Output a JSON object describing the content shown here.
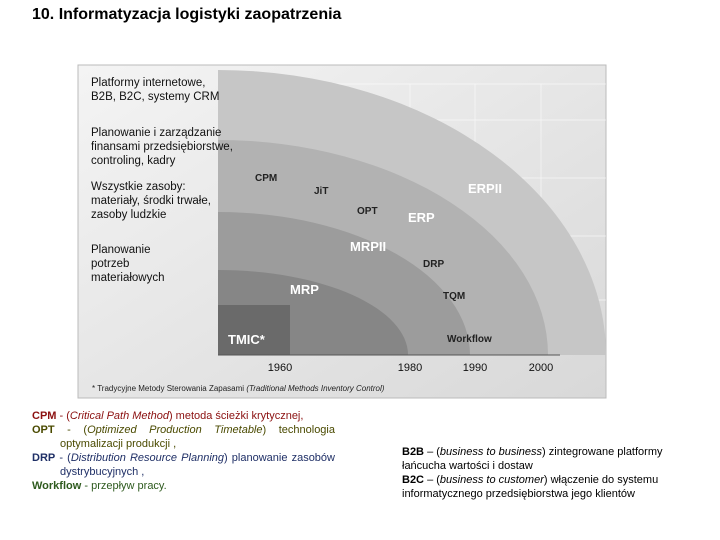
{
  "title": "10. Informatyzacja logistyki zaopatrzenia",
  "diagram": {
    "left_labels": [
      [
        "Platformy internetowe,",
        "B2B, B2C, systemy CRM"
      ],
      [
        "Planowanie i zarządzanie",
        "finansami przedsiębiorstwe,",
        "controling, kadry"
      ],
      [
        "Wszystkie zasoby:",
        "materiały, środki trwałe,",
        "zasoby ludzkie"
      ],
      [
        "Planowanie",
        "potrzeb",
        "materiałowych"
      ]
    ],
    "regions": [
      "ERPII",
      "ERP",
      "MRPII",
      "MRP",
      "TMIC*"
    ],
    "tools": [
      "CPM",
      "JiT",
      "OPT",
      "DRP",
      "TQM",
      "Workflow"
    ],
    "years": [
      "1960",
      "1980",
      "1990",
      "2000"
    ],
    "footnote": {
      "label": "* Tradycyjne Metody Sterowania Zapasami",
      "translation": "(Traditional Methods Inventory Control)"
    }
  },
  "definitions_left": [
    {
      "term": "CPM",
      "open": " - (",
      "expansion": "Critical Path Method",
      "rest": ") metoda ścieżki krytycznej,"
    },
    {
      "term": "OPT",
      "open": " - (",
      "expansion": "Optimized Production Timetable",
      "rest": ") technologia optymalizacji produkcji ,"
    },
    {
      "term": "DRP",
      "open": " - (",
      "expansion": "Distribution Resource Planning",
      "rest": ") planowanie zasobów dystrybucyjnych ,"
    },
    {
      "term": "Workflow",
      "rest": " - przepływ pracy."
    }
  ],
  "definitions_right": [
    {
      "term": "B2B",
      "open": " – (",
      "expansion": "business to business",
      "rest": ") zintegrowane platformy łańcucha wartości i dostaw"
    },
    {
      "term": "B2C",
      "open": " – (",
      "expansion": "business to customer",
      "rest": ") włączenie do systemu informatycznego przedsiębiorstwa jego klientów"
    }
  ]
}
